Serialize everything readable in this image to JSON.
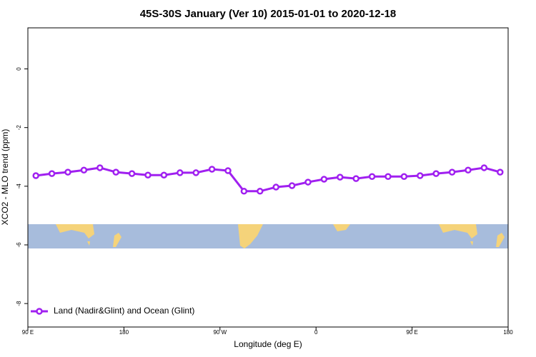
{
  "chart_data": {
    "type": "line",
    "title": "45S-30S January (Ver 10)   2015-01-01 to 2020-12-18",
    "x_label": "Longitude (deg E)",
    "y_label": "XCO2 - MLO trend (ppm)",
    "x": [
      97.5,
      112.5,
      127.5,
      142.5,
      157.5,
      172.5,
      187.5,
      202.5,
      217.5,
      232.5,
      247.5,
      262.5,
      277.5,
      292.5,
      307.5,
      322.5,
      337.5,
      352.5,
      367.5,
      382.5,
      397.5,
      412.5,
      427.5,
      442.5,
      457.5,
      472.5,
      487.5,
      502.5,
      517.5,
      532.5
    ],
    "series": [
      {
        "name": "Land (Nadir&Glint) and Ocean (Glint)",
        "color": "#a020f0",
        "values": [
          -3.64,
          -3.57,
          -3.52,
          -3.45,
          -3.37,
          -3.52,
          -3.57,
          -3.62,
          -3.62,
          -3.54,
          -3.54,
          -3.42,
          -3.47,
          -4.17,
          -4.17,
          -4.03,
          -3.98,
          -3.86,
          -3.76,
          -3.69,
          -3.74,
          -3.67,
          -3.67,
          -3.67,
          -3.64,
          -3.57,
          -3.52,
          -3.45,
          -3.37,
          -3.52
        ]
      }
    ],
    "xlim": [
      90,
      540
    ],
    "xticks": [
      {
        "value": 90,
        "label": "90 E"
      },
      180,
      {
        "value": 270,
        "label": "90 W"
      },
      {
        "value": 360,
        "label": "0"
      },
      {
        "value": 450,
        "label": "90 E"
      },
      {
        "value": 540,
        "label": "180"
      }
    ],
    "ylim": [
      -8.8,
      1.4
    ],
    "yticks": [
      0,
      -2,
      -4,
      -6,
      -8
    ],
    "legend": "bottom-left"
  }
}
